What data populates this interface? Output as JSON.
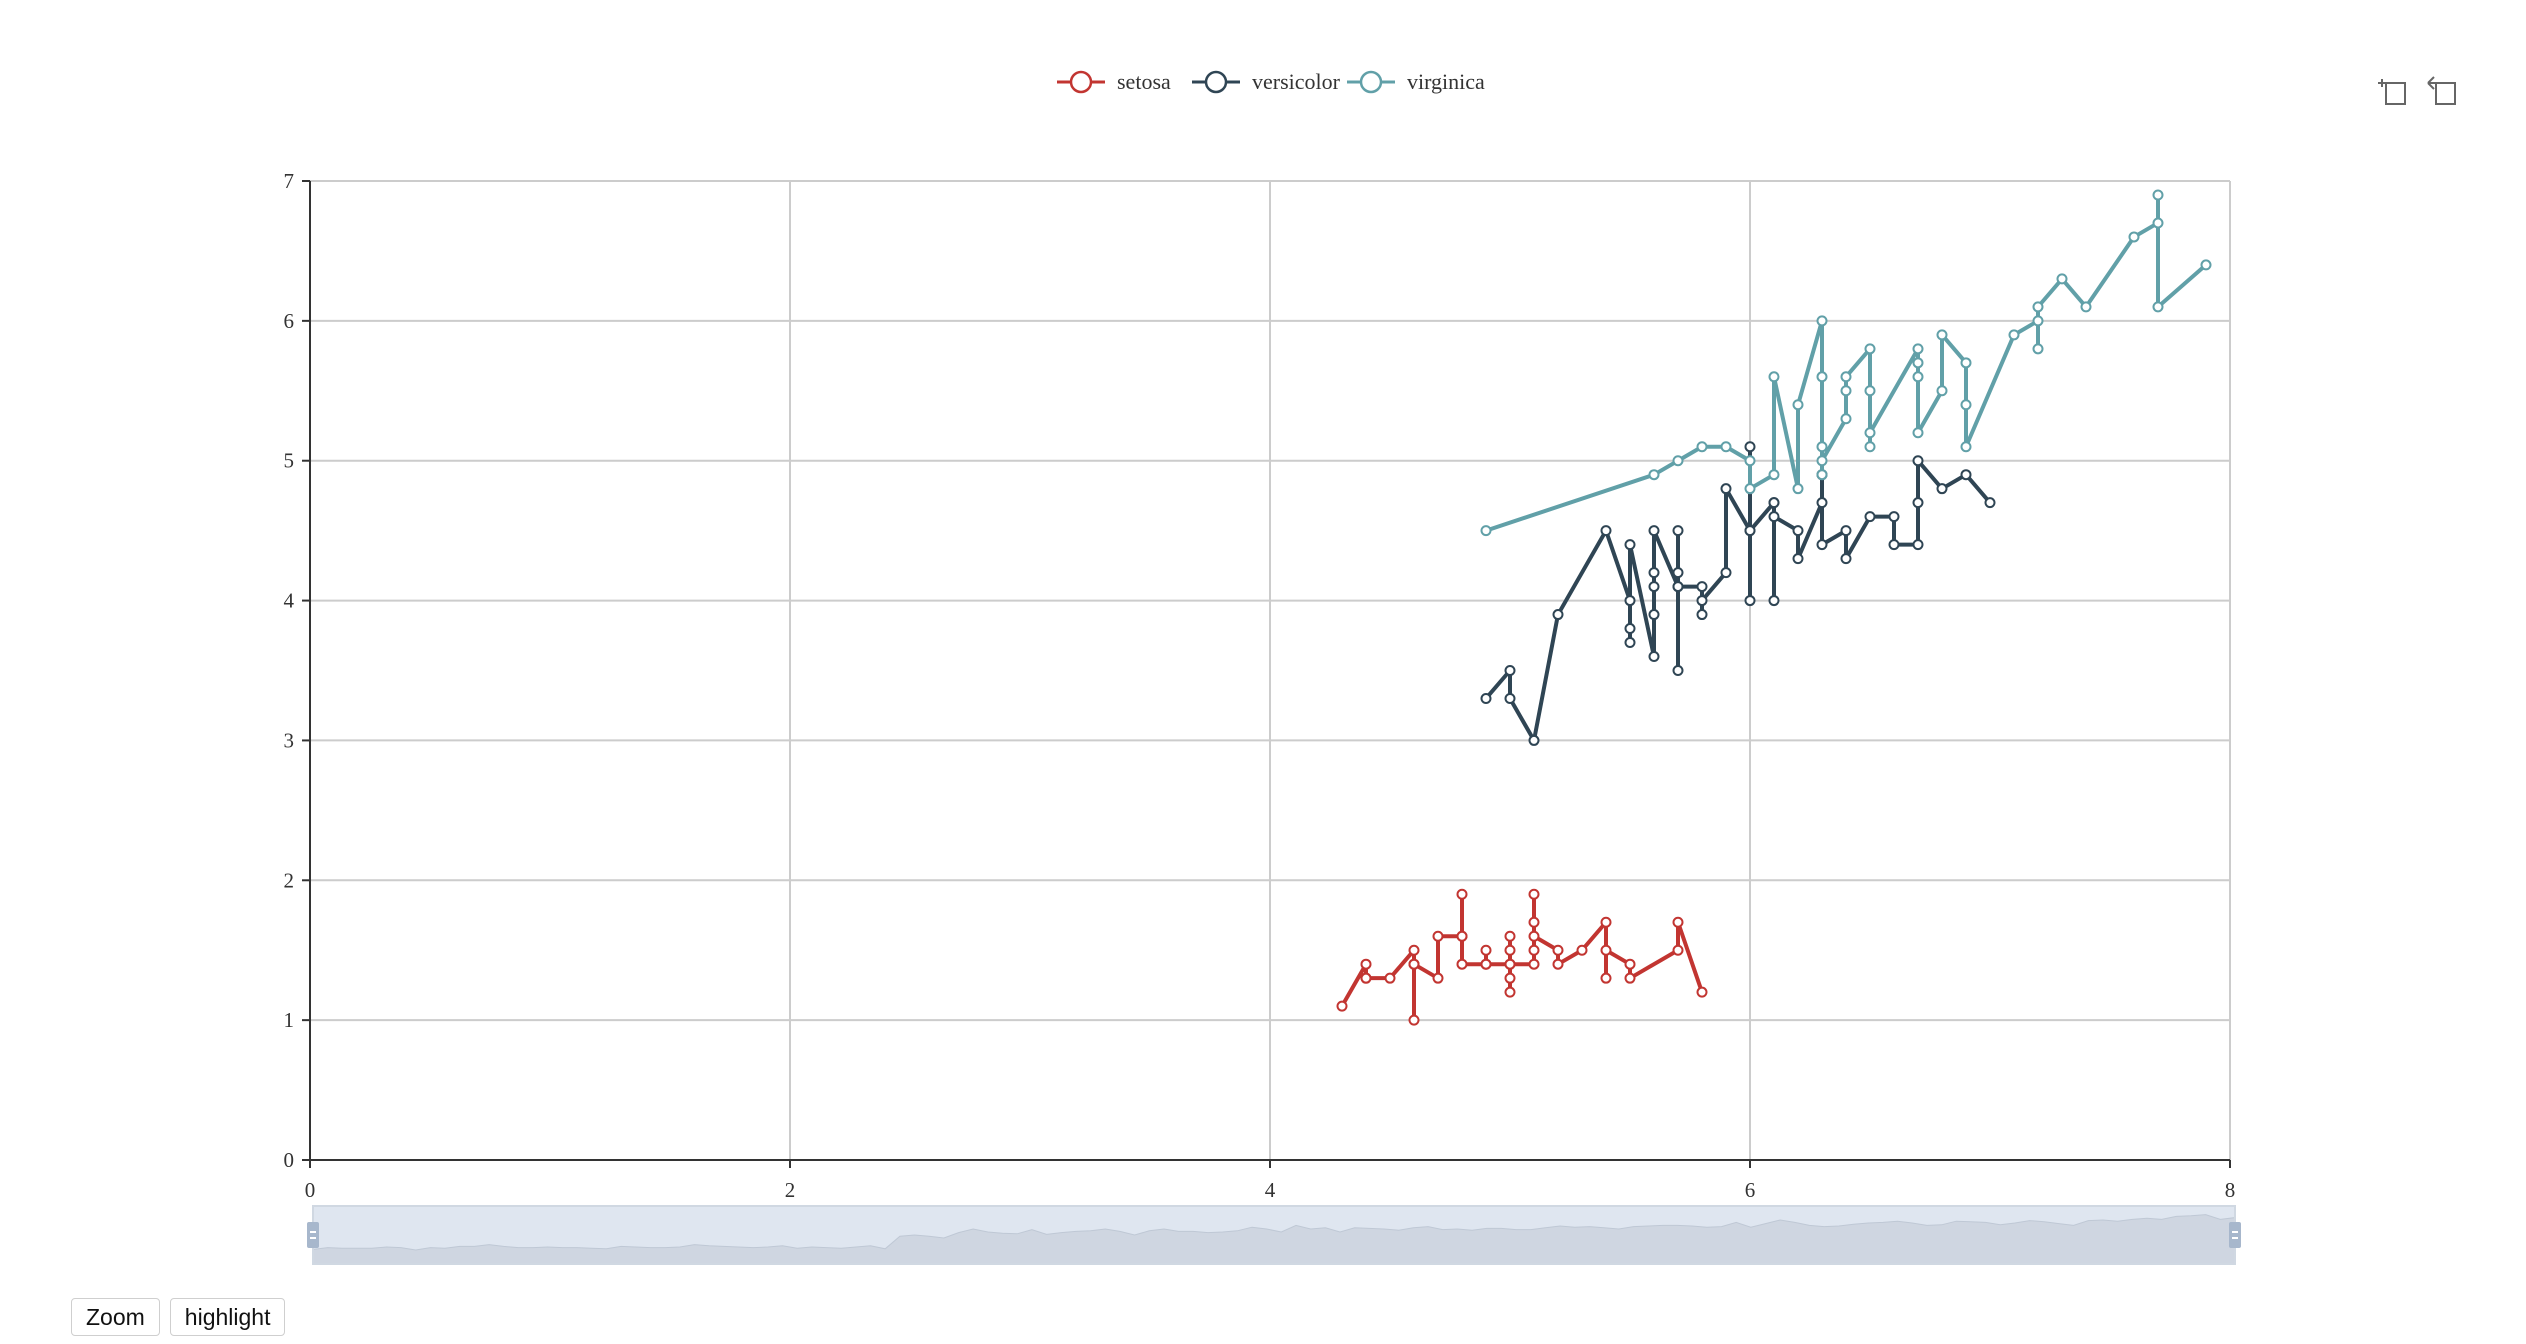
{
  "chart_data": {
    "type": "line",
    "xlim": [
      0,
      8
    ],
    "ylim": [
      0,
      7
    ],
    "x_ticks": [
      "0",
      "2",
      "4",
      "6",
      "8"
    ],
    "y_ticks": [
      "0",
      "1",
      "2",
      "3",
      "4",
      "5",
      "6",
      "7"
    ],
    "grid": true,
    "legend_position": "top-center",
    "series": [
      {
        "name": "setosa",
        "color": "#c23531",
        "points": [
          [
            4.3,
            1.1
          ],
          [
            4.4,
            1.4
          ],
          [
            4.4,
            1.3
          ],
          [
            4.4,
            1.3
          ],
          [
            4.5,
            1.3
          ],
          [
            4.6,
            1.5
          ],
          [
            4.6,
            1.4
          ],
          [
            4.6,
            1.0
          ],
          [
            4.6,
            1.4
          ],
          [
            4.7,
            1.3
          ],
          [
            4.7,
            1.6
          ],
          [
            4.8,
            1.6
          ],
          [
            4.8,
            1.9
          ],
          [
            4.8,
            1.6
          ],
          [
            4.8,
            1.4
          ],
          [
            4.9,
            1.4
          ],
          [
            4.9,
            1.5
          ],
          [
            4.9,
            1.4
          ],
          [
            5.0,
            1.4
          ],
          [
            5.0,
            1.3
          ],
          [
            5.0,
            1.2
          ],
          [
            5.0,
            1.6
          ],
          [
            5.0,
            1.5
          ],
          [
            5.0,
            1.4
          ],
          [
            5.1,
            1.4
          ],
          [
            5.1,
            1.5
          ],
          [
            5.1,
            1.9
          ],
          [
            5.1,
            1.7
          ],
          [
            5.1,
            1.6
          ],
          [
            5.2,
            1.5
          ],
          [
            5.2,
            1.4
          ],
          [
            5.3,
            1.5
          ],
          [
            5.4,
            1.7
          ],
          [
            5.4,
            1.3
          ],
          [
            5.4,
            1.5
          ],
          [
            5.5,
            1.4
          ],
          [
            5.5,
            1.3
          ],
          [
            5.7,
            1.5
          ],
          [
            5.7,
            1.7
          ],
          [
            5.8,
            1.2
          ]
        ]
      },
      {
        "name": "versicolor",
        "color": "#2f4554",
        "points": [
          [
            4.9,
            3.3
          ],
          [
            5.0,
            3.5
          ],
          [
            5.0,
            3.3
          ],
          [
            5.1,
            3.0
          ],
          [
            5.2,
            3.9
          ],
          [
            5.4,
            4.5
          ],
          [
            5.5,
            4.0
          ],
          [
            5.5,
            3.8
          ],
          [
            5.5,
            3.7
          ],
          [
            5.5,
            4.4
          ],
          [
            5.6,
            3.6
          ],
          [
            5.6,
            3.9
          ],
          [
            5.6,
            4.1
          ],
          [
            5.6,
            4.2
          ],
          [
            5.6,
            4.5
          ],
          [
            5.7,
            4.1
          ],
          [
            5.7,
            3.5
          ],
          [
            5.7,
            4.2
          ],
          [
            5.7,
            4.5
          ],
          [
            5.7,
            4.1
          ],
          [
            5.8,
            4.1
          ],
          [
            5.8,
            3.9
          ],
          [
            5.8,
            4.0
          ],
          [
            5.9,
            4.2
          ],
          [
            5.9,
            4.8
          ],
          [
            6.0,
            4.5
          ],
          [
            6.0,
            4.0
          ],
          [
            6.0,
            5.1
          ],
          [
            6.0,
            4.5
          ],
          [
            6.1,
            4.7
          ],
          [
            6.1,
            4.0
          ],
          [
            6.1,
            4.7
          ],
          [
            6.1,
            4.6
          ],
          [
            6.2,
            4.5
          ],
          [
            6.2,
            4.3
          ],
          [
            6.3,
            4.7
          ],
          [
            6.3,
            4.9
          ],
          [
            6.3,
            4.4
          ],
          [
            6.4,
            4.5
          ],
          [
            6.4,
            4.3
          ],
          [
            6.5,
            4.6
          ],
          [
            6.6,
            4.6
          ],
          [
            6.6,
            4.4
          ],
          [
            6.7,
            4.4
          ],
          [
            6.7,
            4.7
          ],
          [
            6.7,
            5.0
          ],
          [
            6.8,
            4.8
          ],
          [
            6.9,
            4.9
          ],
          [
            7.0,
            4.7
          ]
        ]
      },
      {
        "name": "virginica",
        "color": "#61a0a8",
        "points": [
          [
            4.9,
            4.5
          ],
          [
            5.6,
            4.9
          ],
          [
            5.7,
            5.0
          ],
          [
            5.8,
            5.1
          ],
          [
            5.9,
            5.1
          ],
          [
            6.0,
            5.0
          ],
          [
            6.0,
            4.8
          ],
          [
            6.1,
            4.9
          ],
          [
            6.1,
            5.6
          ],
          [
            6.2,
            4.8
          ],
          [
            6.2,
            5.4
          ],
          [
            6.3,
            6.0
          ],
          [
            6.3,
            5.6
          ],
          [
            6.3,
            5.1
          ],
          [
            6.3,
            4.9
          ],
          [
            6.3,
            5.0
          ],
          [
            6.4,
            5.3
          ],
          [
            6.4,
            5.5
          ],
          [
            6.4,
            5.6
          ],
          [
            6.5,
            5.8
          ],
          [
            6.5,
            5.5
          ],
          [
            6.5,
            5.1
          ],
          [
            6.5,
            5.2
          ],
          [
            6.7,
            5.8
          ],
          [
            6.7,
            5.7
          ],
          [
            6.7,
            5.6
          ],
          [
            6.7,
            5.2
          ],
          [
            6.8,
            5.5
          ],
          [
            6.8,
            5.9
          ],
          [
            6.9,
            5.7
          ],
          [
            6.9,
            5.4
          ],
          [
            6.9,
            5.1
          ],
          [
            7.1,
            5.9
          ],
          [
            7.2,
            6.0
          ],
          [
            7.2,
            5.8
          ],
          [
            7.2,
            6.1
          ],
          [
            7.3,
            6.3
          ],
          [
            7.4,
            6.1
          ],
          [
            7.6,
            6.6
          ],
          [
            7.7,
            6.7
          ],
          [
            7.7,
            6.9
          ],
          [
            7.7,
            6.1
          ],
          [
            7.9,
            6.4
          ]
        ]
      }
    ]
  },
  "buttons": {
    "zoom": "Zoom",
    "highlight": "highlight"
  },
  "icons": {
    "zoom_toggle": "data-zoom-icon",
    "zoom_reset": "zoom-reset-icon"
  },
  "slider": {
    "fill": "#dfe6f0",
    "handle": "#a7b7cc"
  }
}
